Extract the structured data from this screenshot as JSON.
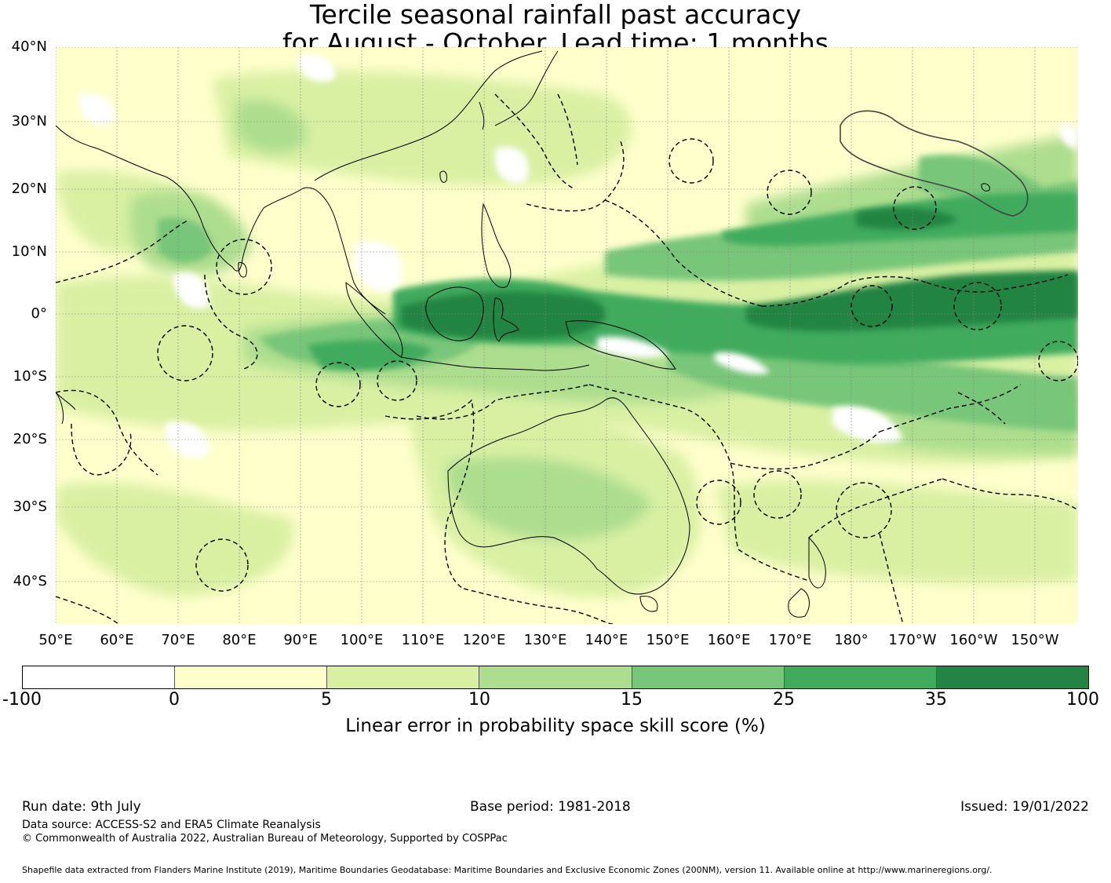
{
  "title_line1": "Tercile seasonal rainfall past accuracy",
  "title_line2": "for August - October. Lead time: 1 months",
  "map": {
    "lat_labels": [
      "40°N",
      "30°N",
      "20°N",
      "10°N",
      "0°",
      "10°S",
      "20°S",
      "30°S",
      "40°S"
    ],
    "lon_labels": [
      "50°E",
      "60°E",
      "70°E",
      "80°E",
      "90°E",
      "100°E",
      "110°E",
      "120°E",
      "130°E",
      "140°E",
      "150°E",
      "160°E",
      "170°E",
      "180°",
      "170°W",
      "160°W",
      "150°W"
    ],
    "extent": {
      "lon_min": 50,
      "lon_max": 217,
      "lat_min": -46,
      "lat_max": 40
    }
  },
  "colorbar": {
    "ticks": [
      "-100",
      "0",
      "5",
      "10",
      "15",
      "25",
      "35",
      "100"
    ],
    "colors": [
      "#ffffff",
      "#ffffcc",
      "#d9f0a3",
      "#addd8e",
      "#78c679",
      "#41ab5d",
      "#238443"
    ],
    "label": "Linear error in probability space skill score (%)"
  },
  "footer": {
    "run_date": "Run date: 9th July",
    "base_period": "Base period: 1981-2018",
    "issued": "Issued: 19/01/2022",
    "data_source": "Data source: ACCESS-S2 and ERA5 Climate Reanalysis",
    "copyright": "© Commonwealth of Australia 2022, Australian Bureau of Meteorology, Supported by COSPPac",
    "shapefile": "Shapefile data extracted from Flanders Marine Institute (2019), Maritime Boundaries Geodatabase: Maritime Boundaries and Exclusive Economic Zones (200NM), version 11. Available online at http://www.marineregions.org/."
  }
}
